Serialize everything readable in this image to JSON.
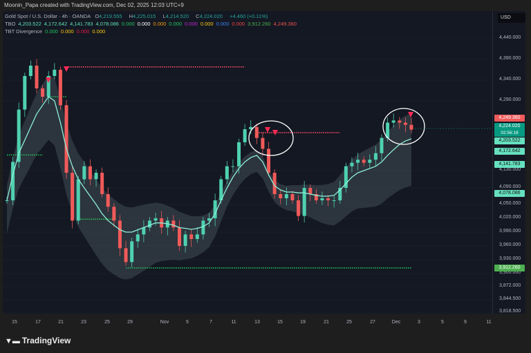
{
  "header": {
    "attribution": "Moonin_Papa created with TradingView.com, Dec 02, 2025 12:03 UTC+9"
  },
  "legend": {
    "symbol": "Gold Spot / U.S. Dollar · 4h · OANDA",
    "o_label": "O",
    "o": "4,219.555",
    "h_label": "H",
    "h": "4,225.015",
    "l_label": "L",
    "l": "4,214.520",
    "c_label": "C",
    "c": "4,224.020",
    "change": "+4.460 (+0.11%)",
    "tbo_label": "TBO",
    "tbo_values": [
      {
        "v": "4,203.522",
        "color": "#5fe0b8"
      },
      {
        "v": "4,172.642",
        "color": "#5fe0b8"
      },
      {
        "v": "4,141.783",
        "color": "#5fe0b8"
      },
      {
        "v": "4,078.086",
        "color": "#5fe0b8"
      },
      {
        "v": "0.000",
        "color": "#22c55e"
      },
      {
        "v": "0.000",
        "color": "#ffffff"
      },
      {
        "v": "0.000",
        "color": "#f59e0b"
      },
      {
        "v": "0.000",
        "color": "#22c55e"
      },
      {
        "v": "0.000",
        "color": "#c026d3"
      },
      {
        "v": "0.000",
        "color": "#facc15"
      },
      {
        "v": "0.000",
        "color": "#3b82f6"
      },
      {
        "v": "0.000",
        "color": "#ef4444"
      },
      {
        "v": "3,912.260",
        "color": "#4caf50"
      },
      {
        "v": "4,249.360",
        "color": "#ef5350"
      }
    ],
    "tbt_label": "TBT Divergence",
    "tbt_values": [
      {
        "v": "0.000",
        "color": "#22c55e"
      },
      {
        "v": "0.000",
        "color": "#facc15"
      },
      {
        "v": "0.000",
        "color": "#e11d48"
      },
      {
        "v": "0.000",
        "color": "#facc15"
      }
    ]
  },
  "currency": "USD",
  "price_labels": [
    {
      "v": "4,249.360",
      "bg": "#f05a5a",
      "fg": "#ffffff",
      "price": 4249.36
    },
    {
      "v": "4,224.020",
      "sub": "02:56:18",
      "bg": "#089981",
      "fg": "#ffffff",
      "price": 4224.02
    },
    {
      "v": "4,203.522",
      "bg": "#66e0be",
      "fg": "#111111",
      "price": 4203.522
    },
    {
      "v": "4,172.642",
      "bg": "#66e0be",
      "fg": "#111111",
      "price": 4172.642
    },
    {
      "v": "4,141.783",
      "bg": "#66e0be",
      "fg": "#111111",
      "price": 4141.783
    },
    {
      "v": "4,078.086",
      "bg": "#66e0be",
      "fg": "#111111",
      "price": 4078.086
    },
    {
      "v": "3,912.260",
      "bg": "#4caf50",
      "fg": "#ffffff",
      "price": 3912.26
    }
  ],
  "footer": {
    "brand": "TradingView"
  },
  "chart_data": {
    "type": "candlestick",
    "title": "Gold Spot / U.S. Dollar · 4h · OANDA",
    "y_ticks": [
      "4,440.000",
      "4,390.000",
      "4,340.000",
      "4,290.000",
      "4,130.000",
      "4,090.000",
      "4,050.000",
      "4,020.000",
      "3,990.000",
      "3,960.000",
      "3,930.000",
      "3,900.000",
      "3,872.000",
      "3,844.500",
      "3,818.500"
    ],
    "x_ticks": [
      "15",
      "17",
      "21",
      "23",
      "25",
      "29",
      "Nov",
      "5",
      "7",
      "11",
      "13",
      "15",
      "19",
      "21",
      "25",
      "27",
      "Dec",
      "3",
      "5",
      "9",
      "11"
    ],
    "closes": [
      4060,
      4150,
      4270,
      4350,
      4375,
      4320,
      4300,
      4350,
      4365,
      4280,
      4125,
      4015,
      4110,
      4140,
      4110,
      4125,
      4075,
      4045,
      4015,
      3955,
      3925,
      3970,
      3985,
      4000,
      4015,
      4020,
      4000,
      4015,
      4000,
      3960,
      3985,
      3975,
      3985,
      4015,
      4020,
      4060,
      4110,
      4140,
      4140,
      4195,
      4225,
      4230,
      4205,
      4180,
      4125,
      4075,
      4065,
      4075,
      4060,
      4025,
      4090,
      4075,
      4060,
      4065,
      4060,
      4060,
      4090,
      4140,
      4148,
      4155,
      4148,
      4155,
      4170,
      4205,
      4240,
      4245,
      4240,
      4235,
      4224
    ],
    "levels": [
      {
        "price": 4372,
        "from": 10,
        "to": 40,
        "color": "#ff4d6d"
      },
      {
        "price": 4300,
        "from": 7,
        "to": 10,
        "color": "#22c55e"
      },
      {
        "price": 4166,
        "from": 0,
        "to": 6,
        "color": "#22c55e"
      },
      {
        "price": 4018,
        "from": 12,
        "to": 18,
        "color": "#22c55e"
      },
      {
        "price": 4217,
        "from": 42,
        "to": 56,
        "color": "#ff4d6d"
      },
      {
        "price": 3912.26,
        "from": 20,
        "to": 68,
        "color": "#22c55e"
      }
    ],
    "ma": [
      4060,
      4120,
      4170,
      4200,
      4230,
      4260,
      4280,
      4300,
      4290,
      4240,
      4180,
      4140,
      4110,
      4090,
      4070,
      4050,
      4030,
      4015,
      4005,
      3995,
      3990,
      3990,
      3995,
      4000,
      4005,
      4010,
      4010,
      4008,
      4005,
      4000,
      3998,
      3996,
      3998,
      4002,
      4010,
      4030,
      4060,
      4090,
      4115,
      4135,
      4150,
      4160,
      4165,
      4150,
      4120,
      4095,
      4085,
      4080,
      4080,
      4078,
      4078,
      4075,
      4072,
      4070,
      4070,
      4072,
      4085,
      4100,
      4115,
      4125,
      4130,
      4135,
      4140,
      4150,
      4165,
      4178,
      4190,
      4198,
      4203
    ]
  }
}
